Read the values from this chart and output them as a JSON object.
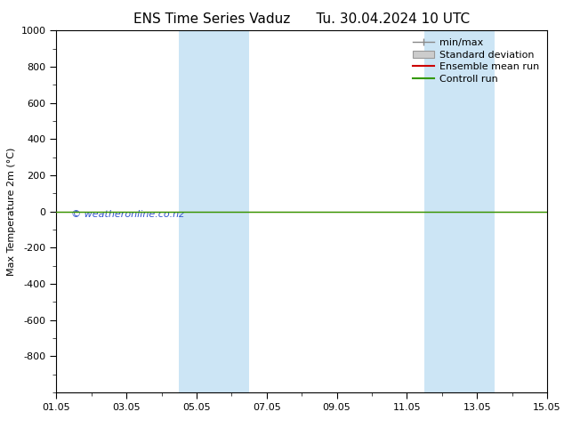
{
  "title": "ENS Time Series Vaduz      Tu. 30.04.2024 10 UTC",
  "ylabel": "Max Temperature 2m (°C)",
  "ylim_top": -1000,
  "ylim_bottom": 1000,
  "yticks": [
    -800,
    -600,
    -400,
    -200,
    0,
    200,
    400,
    600,
    800,
    1000
  ],
  "xtick_labels": [
    "01.05",
    "03.05",
    "05.05",
    "07.05",
    "09.05",
    "11.05",
    "13.05",
    "15.05"
  ],
  "xtick_positions": [
    0,
    2,
    4,
    6,
    8,
    10,
    12,
    14
  ],
  "shade_bands": [
    {
      "x_start": 3.5,
      "x_end": 5.5
    },
    {
      "x_start": 10.5,
      "x_end": 12.5
    }
  ],
  "shade_color": "#cce5f5",
  "green_line_y": 0,
  "green_line_color": "#339900",
  "red_line_color": "#cc0000",
  "legend_labels": [
    "min/max",
    "Standard deviation",
    "Ensemble mean run",
    "Controll run"
  ],
  "watermark": "© weatheronline.co.nz",
  "watermark_color": "#3355cc",
  "background_color": "#ffffff",
  "plot_bg_color": "#ffffff",
  "title_fontsize": 11,
  "axis_fontsize": 8,
  "legend_fontsize": 8
}
